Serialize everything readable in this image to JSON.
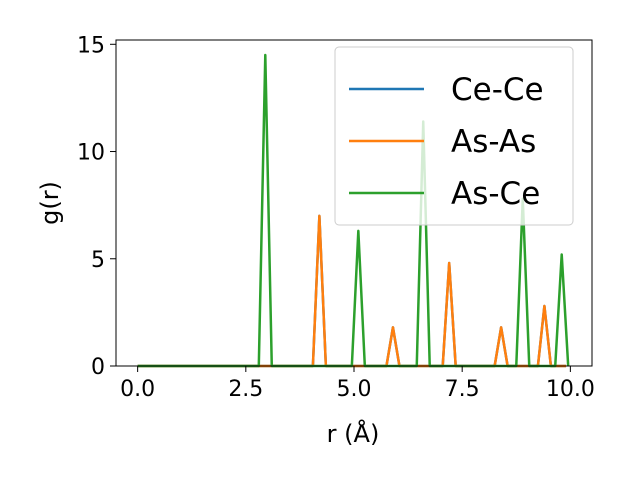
{
  "chart_data": {
    "type": "line",
    "xlabel": "r (Å)",
    "ylabel": "g(r)",
    "xlim": [
      -0.5,
      10.5
    ],
    "ylim": [
      0,
      15.2
    ],
    "xticks": [
      "0.0",
      "2.5",
      "5.0",
      "7.5",
      "10.0"
    ],
    "xtick_values": [
      0,
      2.5,
      5,
      7.5,
      10
    ],
    "yticks": [
      "0",
      "5",
      "10",
      "15"
    ],
    "ytick_values": [
      0,
      5,
      10,
      15
    ],
    "grid": false,
    "legend_position": "top-right",
    "series": [
      {
        "name": "Ce-Ce",
        "color": "#1f77b4",
        "x": [
          0,
          4.05,
          4.2,
          4.35,
          5.75,
          5.9,
          6.05,
          7.05,
          7.2,
          7.35,
          8.25,
          8.4,
          8.55,
          9.25,
          9.4,
          9.55,
          9.9
        ],
        "y": [
          0,
          0,
          7.0,
          0,
          0,
          1.8,
          0,
          0,
          4.8,
          0,
          0,
          1.8,
          0,
          0,
          2.8,
          0,
          0
        ]
      },
      {
        "name": "As-As",
        "color": "#ff7f0e",
        "x": [
          0,
          4.05,
          4.2,
          4.35,
          5.75,
          5.9,
          6.05,
          7.05,
          7.2,
          7.35,
          8.25,
          8.4,
          8.55,
          9.25,
          9.4,
          9.55,
          9.9
        ],
        "y": [
          0,
          0,
          7.0,
          0,
          0,
          1.8,
          0,
          0,
          4.8,
          0,
          0,
          1.8,
          0,
          0,
          2.8,
          0,
          0
        ]
      },
      {
        "name": "As-Ce",
        "color": "#2ca02c",
        "x": [
          0,
          2.8,
          2.95,
          3.1,
          4.95,
          5.1,
          5.25,
          6.45,
          6.6,
          6.75,
          8.75,
          8.9,
          9.05,
          9.65,
          9.8,
          9.95
        ],
        "y": [
          0,
          0,
          14.5,
          0,
          0,
          6.3,
          0,
          0,
          11.4,
          0,
          0,
          7.8,
          0,
          0,
          5.2,
          0
        ]
      }
    ]
  }
}
